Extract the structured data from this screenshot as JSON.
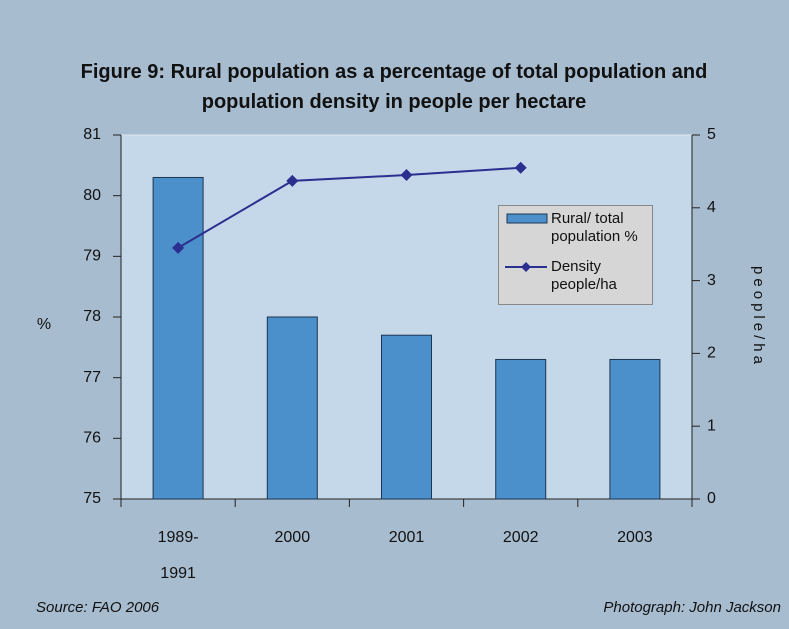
{
  "chart_data": {
    "type": "bar-line",
    "title": "Figure 9: Rural population as a percentage of total population and population density in people per hectare",
    "categories": [
      "1989-1991",
      "2000",
      "2001",
      "2002",
      "2003"
    ],
    "series": [
      {
        "name": "Rural/ total population %",
        "type": "bar",
        "color": "#4b8fcb",
        "values": [
          80.3,
          78.0,
          77.7,
          77.3,
          77.3
        ]
      },
      {
        "name": "Density people/ha",
        "type": "line",
        "axis": "y2",
        "color": "#2b2f8f",
        "values": [
          3.45,
          4.37,
          4.45,
          4.55,
          null
        ]
      }
    ],
    "ylabel": "%",
    "y2label": "people/ha",
    "ylim": [
      75,
      81
    ],
    "yticks": [
      75,
      76,
      77,
      78,
      79,
      80,
      81
    ],
    "y2lim": [
      0,
      5
    ],
    "y2ticks": [
      0,
      1,
      2,
      3,
      4,
      5
    ],
    "source": "Source: FAO 2006",
    "credit": "Photograph: John Jackson"
  }
}
